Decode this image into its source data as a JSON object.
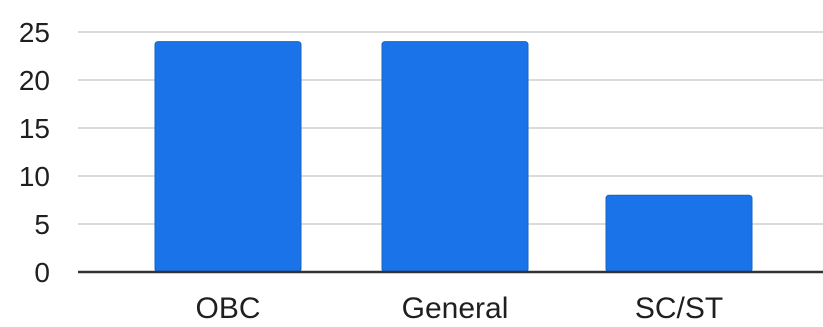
{
  "chart_data": {
    "type": "bar",
    "categories": [
      "OBC",
      "General",
      "SC/ST"
    ],
    "values": [
      24,
      24,
      8
    ],
    "title": "",
    "xlabel": "",
    "ylabel": "",
    "ylim": [
      0,
      25
    ],
    "yticks": [
      "0",
      "5",
      "10",
      "15",
      "20",
      "25"
    ],
    "grid": true,
    "legend": "none",
    "bar_color": "#1a73e8",
    "bar_edge_color": "#1565c0"
  }
}
